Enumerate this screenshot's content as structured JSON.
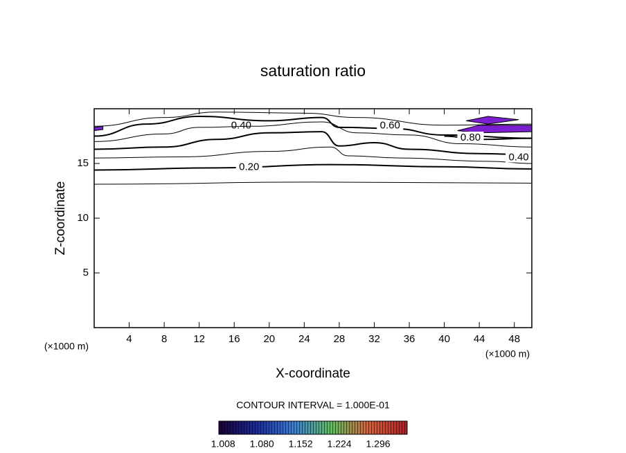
{
  "chart_data": {
    "type": "contour",
    "title": "saturation ratio",
    "xlabel": "X-coordinate",
    "ylabel": "Z-coordinate",
    "x_unit_left": "(×1000 m)",
    "x_unit_right": "(×1000 m)",
    "xlim": [
      0,
      50
    ],
    "ylim": [
      0,
      20
    ],
    "xticks": [
      4,
      8,
      12,
      16,
      20,
      24,
      28,
      32,
      36,
      40,
      44,
      48
    ],
    "yticks": [
      5,
      10,
      15
    ],
    "contour_interval_text": "CONTOUR INTERVAL = 1.000E-01",
    "line_color": "#000000",
    "fill_color": "#7b1fd0",
    "contours": [
      {
        "level": 0.1,
        "points": [
          [
            0,
            13.1
          ],
          [
            25,
            13.3
          ],
          [
            50,
            13.2
          ]
        ]
      },
      {
        "level": 0.2,
        "points": [
          [
            0,
            14.4
          ],
          [
            14,
            14.6
          ],
          [
            27,
            14.9
          ],
          [
            40,
            14.7
          ],
          [
            50,
            14.5
          ]
        ],
        "labels": [
          {
            "text": "0.20",
            "at": [
              17.7,
              14.7
            ]
          }
        ]
      },
      {
        "level": 0.3,
        "points": [
          [
            0,
            15.5
          ],
          [
            10,
            15.6
          ],
          [
            20,
            16.1
          ],
          [
            27,
            16.5
          ],
          [
            29,
            15.7
          ],
          [
            35,
            15.5
          ],
          [
            45,
            15.2
          ],
          [
            50,
            15.0
          ]
        ]
      },
      {
        "level": 0.4,
        "points": [
          [
            0,
            16.3
          ],
          [
            8,
            16.5
          ],
          [
            14,
            17.2
          ],
          [
            20,
            17.8
          ],
          [
            26,
            17.9
          ],
          [
            28,
            16.6
          ],
          [
            32,
            16.9
          ],
          [
            36,
            16.3
          ],
          [
            44,
            15.9
          ],
          [
            50,
            15.8
          ]
        ],
        "labels": [
          {
            "text": "0.40",
            "at": [
              16.8,
              18.5
            ]
          },
          {
            "text": "0.40",
            "at": [
              48.5,
              15.6
            ]
          }
        ]
      },
      {
        "level": 0.5,
        "points": [
          [
            0,
            17.0
          ],
          [
            8,
            17.7
          ],
          [
            12,
            18.3
          ],
          [
            18,
            18.4
          ],
          [
            26,
            18.8
          ],
          [
            30,
            17.8
          ],
          [
            36,
            17.6
          ],
          [
            42,
            16.8
          ],
          [
            50,
            16.5
          ]
        ]
      },
      {
        "level": 0.6,
        "points": [
          [
            0,
            17.5
          ],
          [
            6,
            18.6
          ],
          [
            12,
            19.3
          ],
          [
            20,
            18.9
          ],
          [
            26,
            19.2
          ],
          [
            28,
            18.3
          ],
          [
            34,
            18.2
          ],
          [
            40,
            17.6
          ],
          [
            50,
            17.3
          ]
        ],
        "labels": [
          {
            "text": "0.60",
            "at": [
              33.8,
              18.5
            ]
          }
        ]
      },
      {
        "level": 0.7,
        "points": [
          [
            0,
            18.4
          ],
          [
            8,
            19.2
          ],
          [
            14,
            19.7
          ],
          [
            24,
            19.6
          ],
          [
            30,
            19.2
          ],
          [
            40,
            18.5
          ],
          [
            50,
            18.6
          ]
        ]
      },
      {
        "level": 0.8,
        "points": [
          [
            40,
            17.5
          ],
          [
            44,
            17.2
          ],
          [
            50,
            17.3
          ]
        ],
        "labels": [
          {
            "text": "0.80",
            "at": [
              43,
              17.4
            ]
          }
        ]
      }
    ],
    "regions": [
      {
        "points": [
          [
            42.5,
            18.9
          ],
          [
            45,
            19.3
          ],
          [
            48.5,
            19.0
          ],
          [
            45,
            18.6
          ]
        ]
      },
      {
        "points": [
          [
            41.5,
            18.0
          ],
          [
            44,
            18.5
          ],
          [
            50,
            18.5
          ],
          [
            50,
            17.9
          ],
          [
            44,
            17.8
          ]
        ]
      },
      {
        "points": [
          [
            0,
            18.3
          ],
          [
            1,
            18.4
          ],
          [
            1,
            18.1
          ],
          [
            0,
            18.0
          ]
        ]
      }
    ],
    "clim": [
      1.0,
      1.35
    ],
    "cticks": [
      1.008,
      {
        "value": 1.08,
        "label": "1.080"
      },
      1.152,
      1.224,
      1.296
    ]
  }
}
